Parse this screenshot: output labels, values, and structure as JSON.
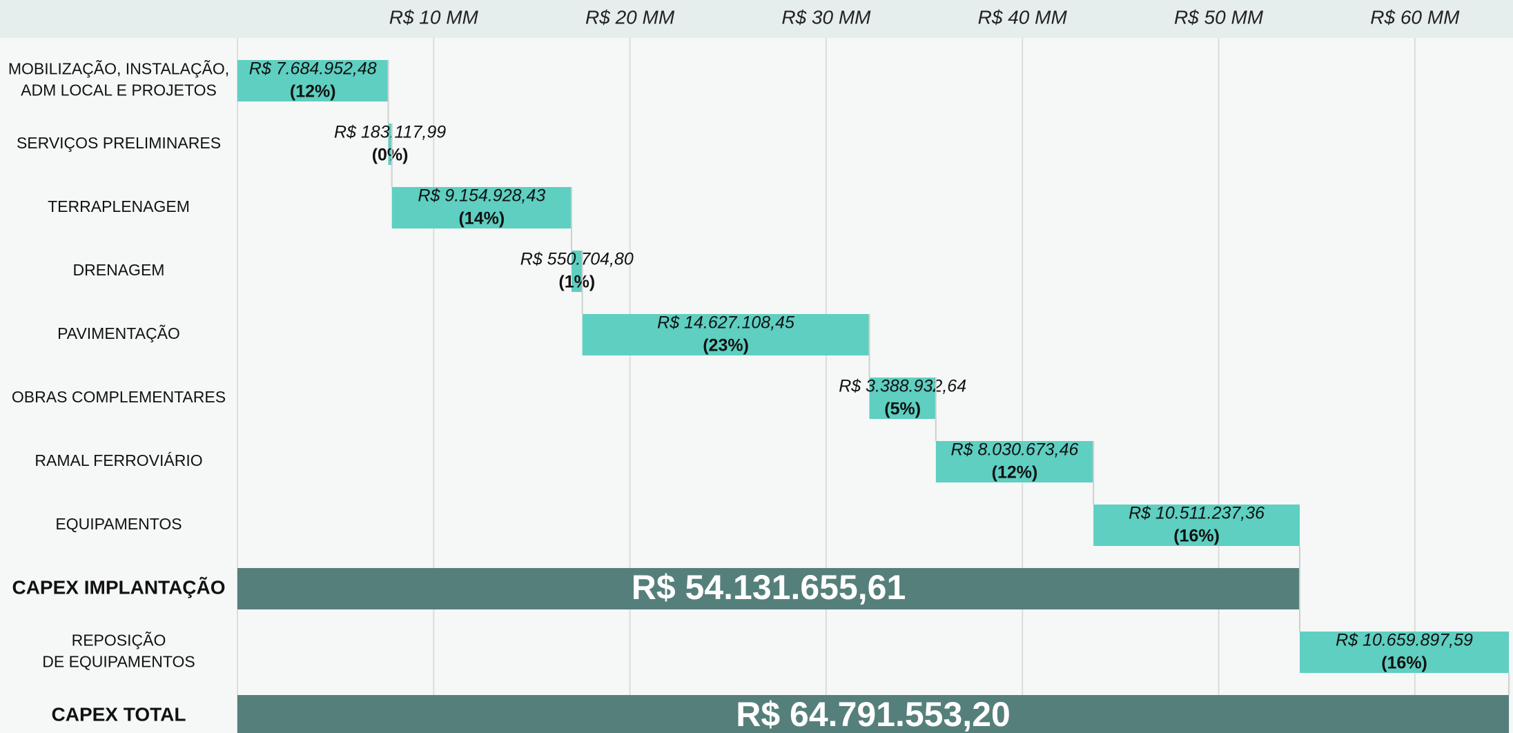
{
  "chart_data": {
    "type": "waterfall",
    "orientation": "horizontal",
    "categories": [
      "MOBILIZAÇÃO, INSTALAÇÃO,\nADM LOCAL  E PROJETOS",
      "SERVIÇOS PRELIMINARES",
      "TERRAPLENAGEM",
      "DRENAGEM",
      "PAVIMENTAÇÃO",
      "OBRAS COMPLEMENTARES",
      "RAMAL FERROVIÁRIO",
      "EQUIPAMENTOS",
      "CAPEX IMPLANTAÇÃO",
      "REPOSIÇÃO\nDE EQUIPAMENTOS",
      "CAPEX TOTAL"
    ],
    "values": [
      7684952.48,
      183117.99,
      9154928.43,
      550704.8,
      14627108.45,
      3388932.64,
      8030673.46,
      10511237.36,
      54131655.61,
      10659897.59,
      64791553.2
    ],
    "value_labels": [
      "R$ 7.684.952,48",
      "R$ 183.117,99",
      "R$ 9.154.928,43",
      "R$ 550.704,80",
      "R$ 14.627.108,45",
      "R$ 3.388.932,64",
      "R$ 8.030.673,46",
      "R$ 10.511.237,36",
      "R$ 54.131.655,61",
      "R$ 10.659.897,59",
      "R$ 64.791.553,20"
    ],
    "share_labels": [
      "(12%)",
      "(0%)",
      "(14%)",
      "(1%)",
      "(23%)",
      "(5%)",
      "(12%)",
      "(16%)",
      null,
      "(16%)",
      null
    ],
    "totals": [
      false,
      false,
      false,
      false,
      false,
      false,
      false,
      false,
      true,
      false,
      true
    ],
    "color": "#5ecfc1",
    "total_color": "#557f7a",
    "xlim": [
      0,
      65000000
    ],
    "xticks": [
      {
        "value": 10000000,
        "label": "R$ 10 MM"
      },
      {
        "value": 20000000,
        "label": "R$ 20 MM"
      },
      {
        "value": 30000000,
        "label": "R$ 30 MM"
      },
      {
        "value": 40000000,
        "label": "R$ 40 MM"
      },
      {
        "value": 50000000,
        "label": "R$ 50 MM"
      },
      {
        "value": 60000000,
        "label": "R$ 60 MM"
      }
    ],
    "grid": true
  }
}
